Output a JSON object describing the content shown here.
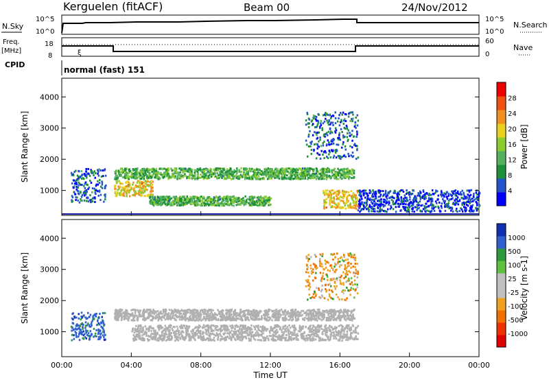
{
  "header": {
    "station": "Kerguelen (fitACF)",
    "beam": "Beam 00",
    "date": "24/Nov/2012"
  },
  "panels": {
    "noise": {
      "left_label": "N.Sky",
      "left_ticks": [
        "10^5",
        "10^0"
      ],
      "right_ticks": [
        "10^5",
        "10^0"
      ],
      "right_label": "N.Search"
    },
    "freq": {
      "left_label_1": "Freq.",
      "left_label_2": "[MHz]",
      "left_ticks": [
        "18",
        "8"
      ],
      "right_ticks": [
        "60",
        "0"
      ],
      "right_label": "Nave"
    },
    "cpid": {
      "label": "CPID",
      "text": "normal (fast) 151"
    }
  },
  "colors": {
    "power": [
      "#0000ff",
      "#2255cc",
      "#1e8f3a",
      "#55b060",
      "#8ccc30",
      "#e8d020",
      "#f09020",
      "#f05010",
      "#ee0000"
    ],
    "velocity": [
      "#1030b0",
      "#3060d0",
      "#2f9a3a",
      "#60c040",
      "#c0c0c0",
      "#c0c0c0",
      "#f0a020",
      "#f07000",
      "#f03000",
      "#e00000"
    ],
    "ground_scatter": "#b0b0b0"
  },
  "chart_data": [
    {
      "type": "heatmap",
      "name": "Power",
      "ylabel": "Slant Range [km]",
      "yticks": [
        "1000",
        "2000",
        "3000",
        "4000"
      ],
      "ylim": [
        200,
        4600
      ],
      "xlim_hours": [
        0,
        24
      ],
      "colorbar_label": "Power [dB]",
      "colorbar_ticks": [
        "4",
        "8",
        "12",
        "16",
        "20",
        "24",
        "28"
      ],
      "colorbar_range": [
        0,
        32
      ],
      "features": [
        {
          "t0": 3.0,
          "t1": 16.8,
          "r0": 1350,
          "r1": 1700,
          "level": 12
        },
        {
          "t0": 3.0,
          "t1": 5.2,
          "r0": 800,
          "r1": 1300,
          "level": 20
        },
        {
          "t0": 15.0,
          "t1": 17.0,
          "r0": 400,
          "r1": 1000,
          "level": 20
        },
        {
          "t0": 5.0,
          "t1": 12.0,
          "r0": 500,
          "r1": 800,
          "level": 12
        },
        {
          "t0": 0.5,
          "t1": 2.5,
          "r0": 600,
          "r1": 1700,
          "level": 6
        },
        {
          "t0": 14.0,
          "t1": 17.0,
          "r0": 2000,
          "r1": 3500,
          "level": 6
        },
        {
          "t0": 17.0,
          "t1": 24.0,
          "r0": 300,
          "r1": 1000,
          "level": 4
        }
      ]
    },
    {
      "type": "heatmap",
      "name": "Velocity",
      "ylabel": "Slant Range [km]",
      "yticks": [
        "1000",
        "2000",
        "3000",
        "4000"
      ],
      "ylim": [
        200,
        4600
      ],
      "xlim_hours": [
        0,
        24
      ],
      "xticks": [
        "00:00",
        "04:00",
        "08:00",
        "12:00",
        "16:00",
        "20:00",
        "00:00"
      ],
      "xlabel": "Time UT",
      "colorbar_label": "Velocity [m s-1]",
      "colorbar_ticks": [
        "1000",
        "500",
        "100",
        "25",
        "-25",
        "-100",
        "-500",
        "-1000"
      ],
      "features": [
        {
          "t0": 3.0,
          "t1": 16.8,
          "r0": 1350,
          "r1": 1700,
          "level": 0
        },
        {
          "t0": 4.0,
          "t1": 17.0,
          "r0": 700,
          "r1": 1200,
          "level": 0
        },
        {
          "t0": 0.5,
          "t1": 2.5,
          "r0": 700,
          "r1": 1600,
          "level": 500
        },
        {
          "t0": 14.0,
          "t1": 17.0,
          "r0": 2000,
          "r1": 3500,
          "level": -200
        }
      ]
    }
  ]
}
